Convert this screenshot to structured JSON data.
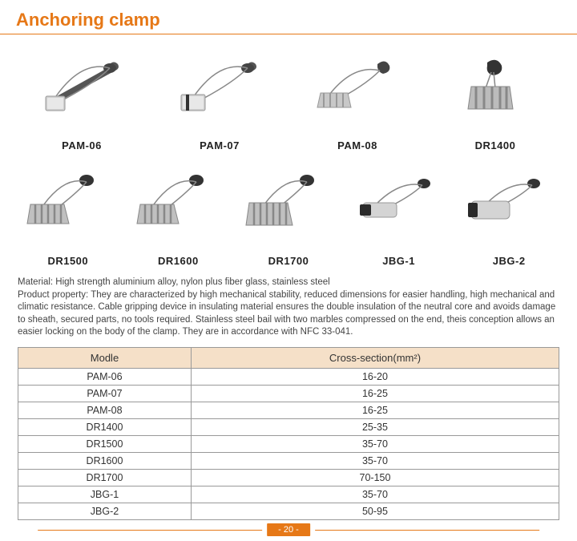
{
  "title": "Anchoring clamp",
  "colors": {
    "accent": "#e67817",
    "header_bg": "#f5e0c8",
    "border": "#999999",
    "text": "#444444"
  },
  "products_row1": [
    {
      "label": "PAM-06"
    },
    {
      "label": "PAM-07"
    },
    {
      "label": "PAM-08"
    },
    {
      "label": "DR1400"
    }
  ],
  "products_row2": [
    {
      "label": "DR1500"
    },
    {
      "label": "DR1600"
    },
    {
      "label": "DR1700"
    },
    {
      "label": "JBG-1"
    },
    {
      "label": "JBG-2"
    }
  ],
  "description": {
    "material": "Material: High strength aluminium alloy, nylon plus fiber glass, stainless steel",
    "property": "Product property: They are characterized by high mechanical stability, reduced dimensions for easier handling, high mechanical and climatic resistance. Cable gripping device in insulating material ensures the double insulation of the neutral core and avoids damage to sheath, secured parts, no tools required. Stainless steel bail with two marbles compressed on the end, theis conception allows an easier locking on the body of the clamp. They are in accordance with NFC 33-041."
  },
  "table": {
    "headers": [
      "Modle",
      "Cross-section(mm²)"
    ],
    "rows": [
      [
        "PAM-06",
        "16-20"
      ],
      [
        "PAM-07",
        "16-25"
      ],
      [
        "PAM-08",
        "16-25"
      ],
      [
        "DR1400",
        "25-35"
      ],
      [
        "DR1500",
        "35-70"
      ],
      [
        "DR1600",
        "35-70"
      ],
      [
        "DR1700",
        "70-150"
      ],
      [
        "JBG-1",
        "35-70"
      ],
      [
        "JBG-2",
        "50-95"
      ]
    ]
  },
  "page_number": "- 20 -"
}
